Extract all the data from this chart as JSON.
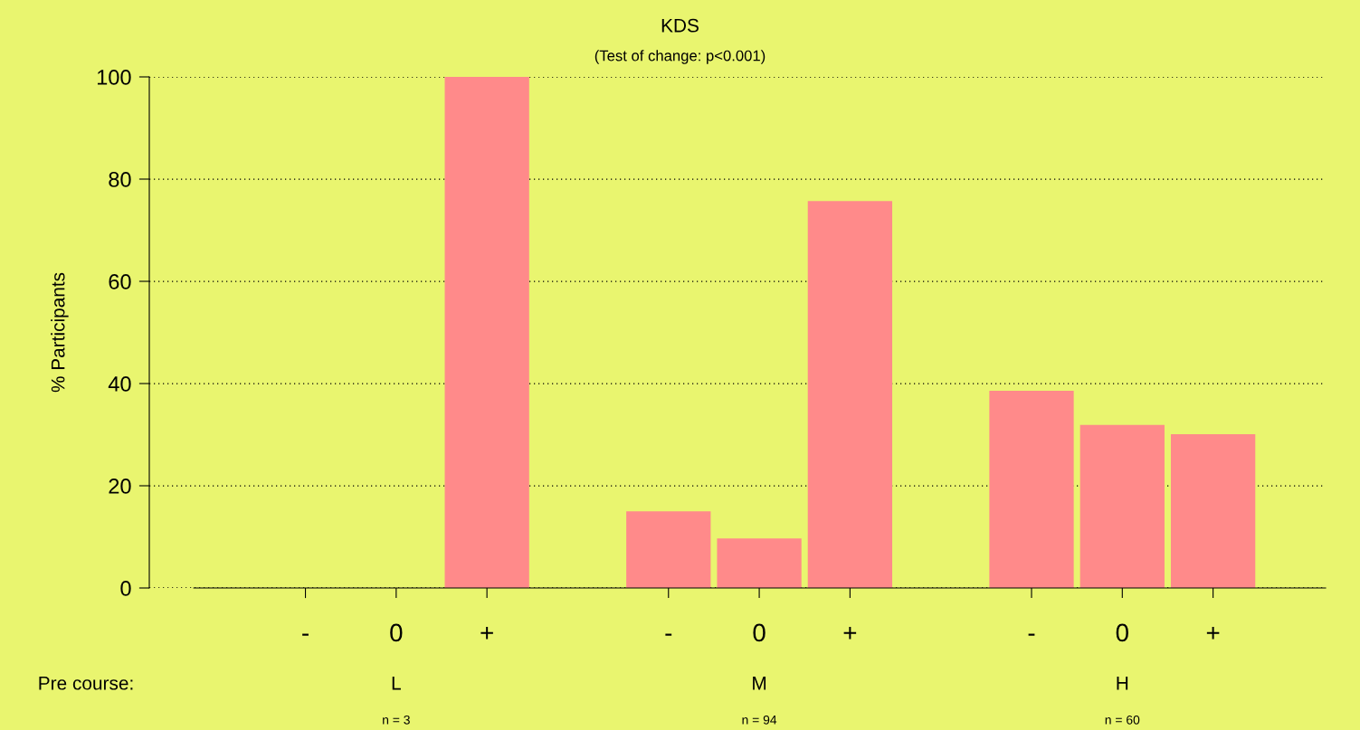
{
  "chart_data": {
    "type": "bar",
    "title": "KDS",
    "subtitle": "(Test of change: p<0.001)",
    "ylabel": "% Participants",
    "categories": [
      "-",
      "0",
      "+",
      null,
      "-",
      "0",
      "+",
      null,
      "-",
      "0",
      "+"
    ],
    "values": [
      0,
      0,
      100,
      null,
      15,
      9.7,
      75.7,
      null,
      38.6,
      31.9,
      30.1
    ],
    "color": "#ff8a8a",
    "ylim": [
      0,
      100
    ],
    "yticks": [
      0,
      20,
      40,
      60,
      80,
      100
    ],
    "grid": "y",
    "annotations": [
      "Pre course:",
      "L",
      "n = 3",
      "M",
      "n = 94",
      "H",
      "n = 60"
    ]
  }
}
